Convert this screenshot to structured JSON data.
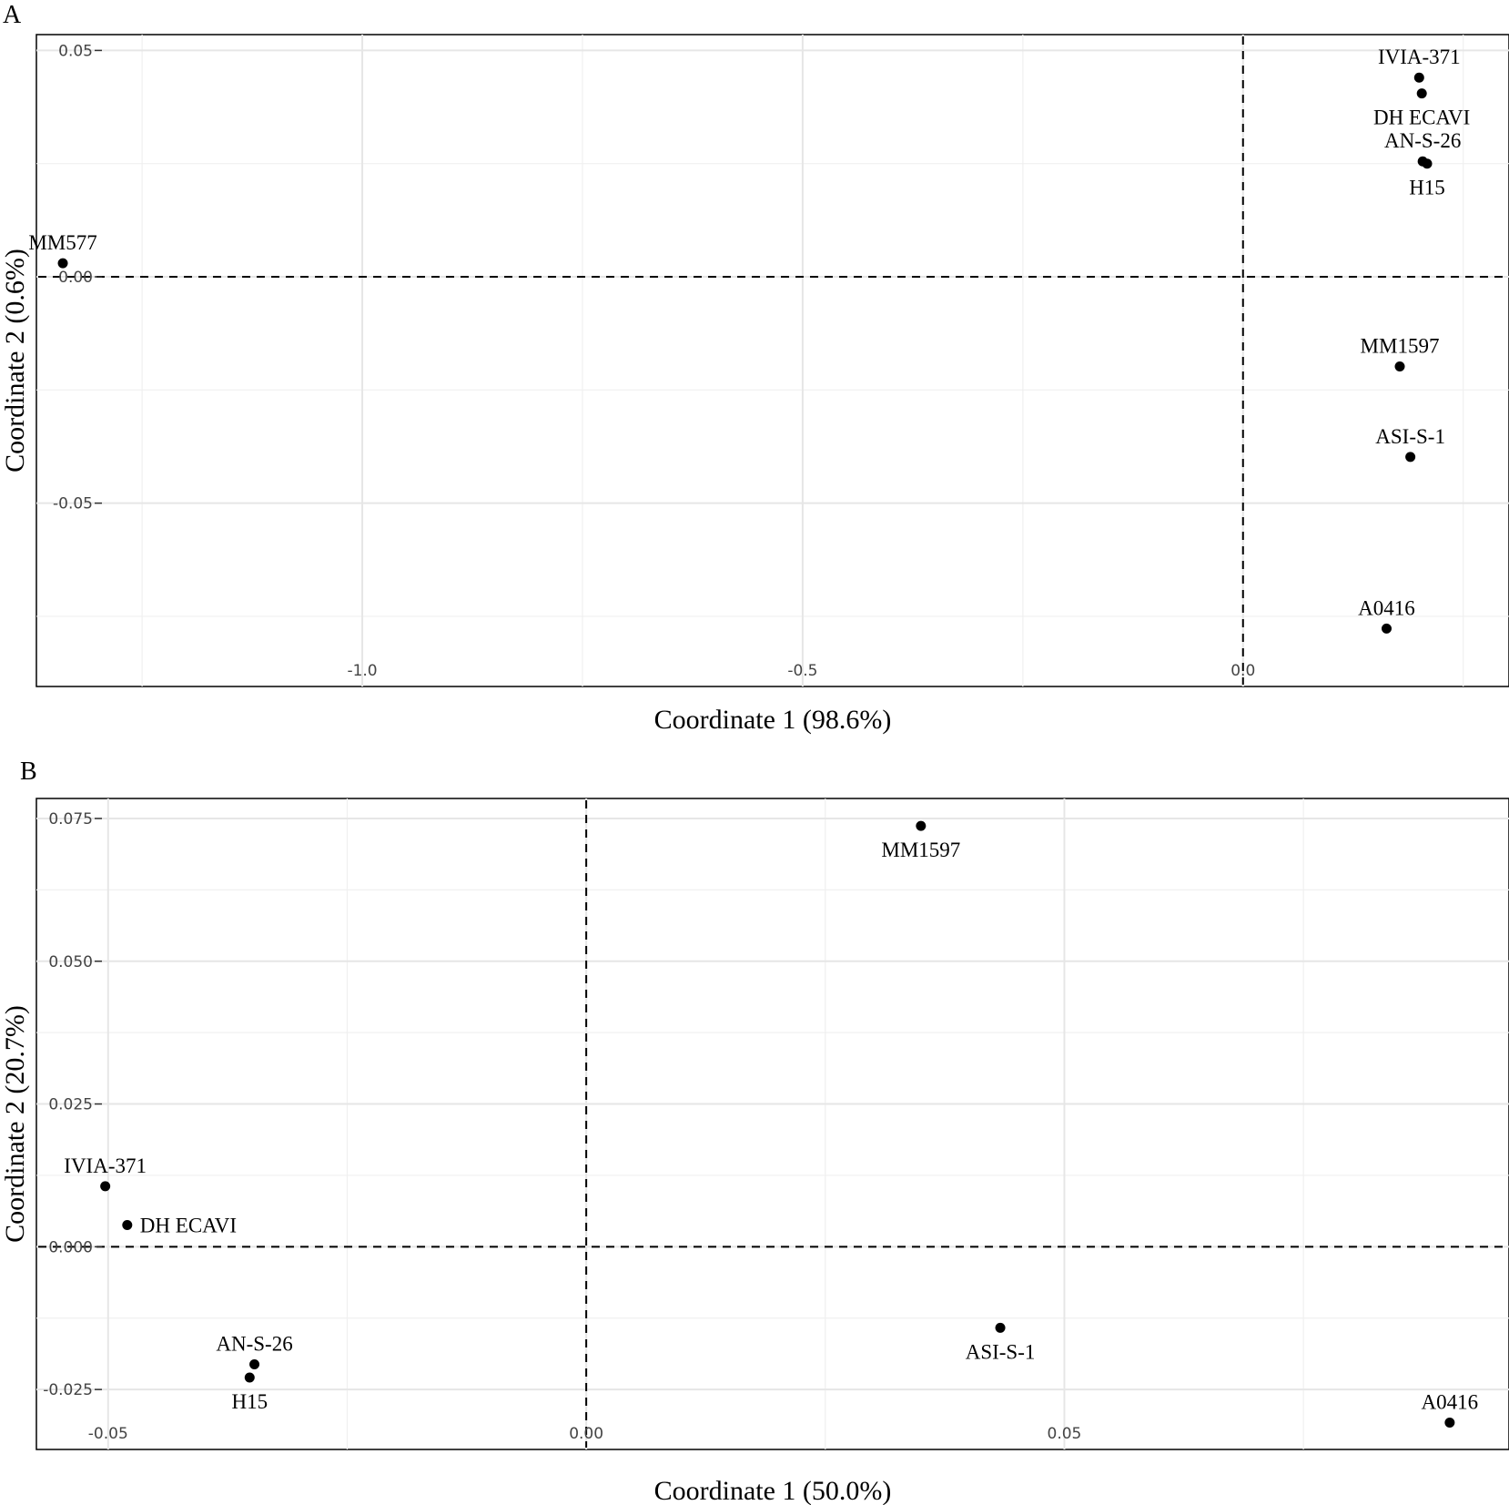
{
  "chart_data": [
    {
      "type": "scatter",
      "panel": "A",
      "title": "",
      "xlabel": "Coordinate 1 (98.6%)",
      "ylabel": "Coordinate 2 (0.6%)",
      "xlim": [
        -1.37,
        0.302
      ],
      "ylim": [
        -0.0905,
        0.0535
      ],
      "xticks": [
        -1.0,
        -0.5,
        0.0
      ],
      "xtick_labels": [
        "-1.0",
        "-0.5",
        "0.0"
      ],
      "yticks": [
        0.05,
        0.0,
        -0.05
      ],
      "ytick_labels": [
        "0.05",
        "0.00",
        "-0.05"
      ],
      "grid": true,
      "reference_lines": {
        "x": 0.0,
        "y": 0.0
      },
      "points": [
        {
          "label": "IVIA-371",
          "x": 0.2,
          "y": 0.044,
          "label_pos": "above"
        },
        {
          "label": "DH ECAVI",
          "x": 0.203,
          "y": 0.0405,
          "label_pos": "below"
        },
        {
          "label": "AN-S-26",
          "x": 0.204,
          "y": 0.0255,
          "label_pos": "above"
        },
        {
          "label": "H15",
          "x": 0.209,
          "y": 0.025,
          "label_pos": "below"
        },
        {
          "label": "MM577",
          "x": -1.34,
          "y": 0.003,
          "label_pos": "above"
        },
        {
          "label": "MM1597",
          "x": 0.178,
          "y": -0.0198,
          "label_pos": "above"
        },
        {
          "label": "ASI-S-1",
          "x": 0.19,
          "y": -0.0398,
          "label_pos": "above"
        },
        {
          "label": "A0416",
          "x": 0.163,
          "y": -0.0777,
          "label_pos": "above"
        }
      ]
    },
    {
      "type": "scatter",
      "panel": "B",
      "title": "",
      "xlabel": "Coordinate 1 (50.0%)",
      "ylabel": "Coordinate 2 (20.7%)",
      "xlim": [
        -0.0575,
        0.0965
      ],
      "ylim": [
        -0.0355,
        0.0785
      ],
      "xticks": [
        -0.05,
        0.0,
        0.05
      ],
      "xtick_labels": [
        "-0.05",
        "0.00",
        "0.05"
      ],
      "yticks": [
        0.075,
        0.05,
        0.025,
        0.0,
        -0.025
      ],
      "ytick_labels": [
        "0.075",
        "0.050",
        "0.025",
        "0.000",
        "-0.025"
      ],
      "grid": true,
      "reference_lines": {
        "x": 0.0,
        "y": 0.0
      },
      "points": [
        {
          "label": "MM1597",
          "x": 0.035,
          "y": 0.0737,
          "label_pos": "below"
        },
        {
          "label": "IVIA-371",
          "x": -0.0503,
          "y": 0.0106,
          "label_pos": "above"
        },
        {
          "label": "DH ECAVI",
          "x": -0.048,
          "y": 0.0038,
          "label_pos": "right"
        },
        {
          "label": "AN-S-26",
          "x": -0.0347,
          "y": -0.0206,
          "label_pos": "above"
        },
        {
          "label": "H15",
          "x": -0.0352,
          "y": -0.0229,
          "label_pos": "below"
        },
        {
          "label": "ASI-S-1",
          "x": 0.0433,
          "y": -0.0142,
          "label_pos": "below"
        },
        {
          "label": "A0416",
          "x": 0.0903,
          "y": -0.0308,
          "label_pos": "above"
        }
      ]
    }
  ]
}
